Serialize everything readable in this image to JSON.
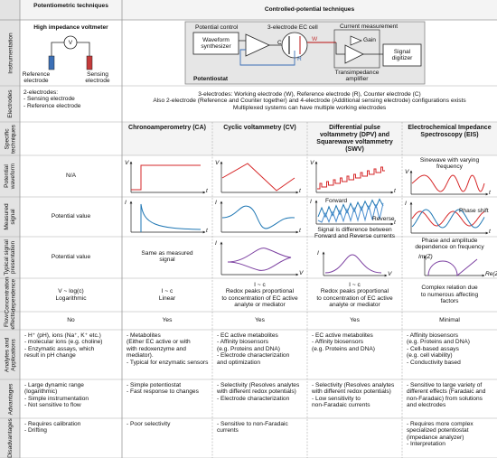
{
  "header": {
    "potentiometric": "Potentiometric techniques",
    "controlled": "Controlled-potential techniques"
  },
  "row_labels": [
    "Instrumentation",
    "Electrodes",
    "Specific techniques",
    "Potential waveform",
    "Measured signal",
    "Typical signal presentation",
    "Concentration dependence",
    "Flow effects",
    "Analytes and Applications",
    "Advantages",
    "Disadvantages"
  ],
  "instrumentation": {
    "potentiometric": {
      "title": "High impedance voltmeter",
      "v": "V",
      "reference": "Reference electrode",
      "sensing": "Sensing electrode"
    },
    "controlled": {
      "potential_control": "Potential control",
      "waveform": "Waveform synthesizer",
      "cell": "3-electrode EC cell",
      "current": "Current measurement",
      "gain": "Gain",
      "c": "C",
      "w": "W",
      "r": "R",
      "signal": "Signal digitizer",
      "transimpedance": "Transimpedance amplifier",
      "potentiostat": "Potentiostat"
    }
  },
  "electrodes": {
    "potentiometric": [
      "2-electrodes:",
      "- Sensing electrode",
      "- Reference electrode"
    ],
    "controlled": [
      "3-electrodes: Working electrode (W), Reference electrode (R), Counter electrode (C)",
      "Also 2-electrode (Reference and Counter together) and 4-electrode (Additional sensing electrode) configurations exists",
      "Multiplexed systems can have multiple working electrodes"
    ]
  },
  "techniques": {
    "ca": "Chronoamperometry (CA)",
    "cv": "Cyclic voltammetry (CV)",
    "dpv": "Differential pulse voltammetry (DPV) and Squarewave voltammetry (SWV)",
    "eis": "Electrochemical Impedance Spectroscopy (EIS)"
  },
  "axis": {
    "v": "V",
    "t": "t",
    "i": "I",
    "im": "Im(Z)",
    "re": "Re(Z)"
  },
  "waveform": {
    "potentiometric": "N/A",
    "eis": "Sinewave with varying frequency"
  },
  "measured": {
    "potentiometric": "Potential value",
    "dpv_forward": "Forward",
    "dpv_reverse": "Reverse",
    "dpv_note": [
      "Signal is difference between",
      "Forward and Reverse currents"
    ],
    "eis": "Phase shift"
  },
  "presentation": {
    "potentiometric": "Potential value",
    "ca": "Same as measured signal",
    "eis": "Phase and amplitude dependence on frequency"
  },
  "cells": {
    "concentration": {
      "potentiometric": [
        "V ~ log(c)",
        "Logarithmic"
      ],
      "ca": [
        "I ~ c",
        "Linear"
      ],
      "cv": [
        "I ~ c",
        "Redox peaks proportional",
        "to concentration of EC active",
        "analyte or mediator"
      ],
      "dpv": [
        "I ~ c",
        "Redox peaks proportional",
        "to concentration of EC active",
        "analyte or mediator"
      ],
      "eis": [
        "Complex relation due",
        "to numerous affecting",
        "factors"
      ]
    },
    "flow": {
      "potentiometric": [
        "No"
      ],
      "ca": [
        "Yes"
      ],
      "cv": [
        "Yes"
      ],
      "dpv": [
        "Yes"
      ],
      "eis": [
        "Minimal"
      ]
    },
    "analytes": {
      "potentiometric": [
        "- H⁺ (pH), ions (Na⁺, K⁺ etc.)",
        "- molecular ions (e.g. choline)",
        "- Enzymatic assays, which",
        "result in pH change"
      ],
      "ca": [
        "- Metabolites",
        "(Either EC active or with",
        "with redoxenzyme and",
        "mediator).",
        "- Typical for enzymatic sensors"
      ],
      "cv": [
        "- EC active metabolites",
        "- Affinity biosensors",
        "(e.g. Proteins and DNA)",
        "- Electrode characterization",
        "and optimization"
      ],
      "dpv": [
        "- EC active metabolites",
        "- Affinity biosensors",
        "(e.g. Proteins and DNA)"
      ],
      "eis": [
        "- Affinity biosensors",
        "(e.g. Proteins and DNA)",
        "- Cell-based assays",
        "(e.g. cell viability)",
        "- Conductivity based"
      ]
    },
    "advantages": {
      "potentiometric": [
        "- Large dynamic range",
        "(logarithmic)",
        "- Simple instrumentation",
        "- Not sensitive to flow"
      ],
      "ca": [
        "- Simple potentiostat",
        "- Fast response to changes"
      ],
      "cv": [
        "- Selectivity (Resolves analytes",
        "with different redox potentials)",
        "- Electrode characterization"
      ],
      "dpv": [
        "- Selectivity (Resolves analytes",
        "with different redox potentials)",
        "- Low sensitivity to",
        "non-Faradaic currents"
      ],
      "eis": [
        "- Sensitive to large variety of",
        "different effects (Faradaic and",
        "non-Faradaic) from solutions",
        "and electrodes"
      ]
    },
    "disadvantages": {
      "potentiometric": [
        "- Requires calibration",
        "- Drifting"
      ],
      "ca": [
        "- Poor selectivity"
      ],
      "cv": [
        "- Sensitive to non-Faradaic",
        "currents"
      ],
      "eis": [
        "- Requires more complex",
        "specialized potentiostat",
        "(impedance analyzer)",
        "- Interpretation"
      ]
    }
  }
}
